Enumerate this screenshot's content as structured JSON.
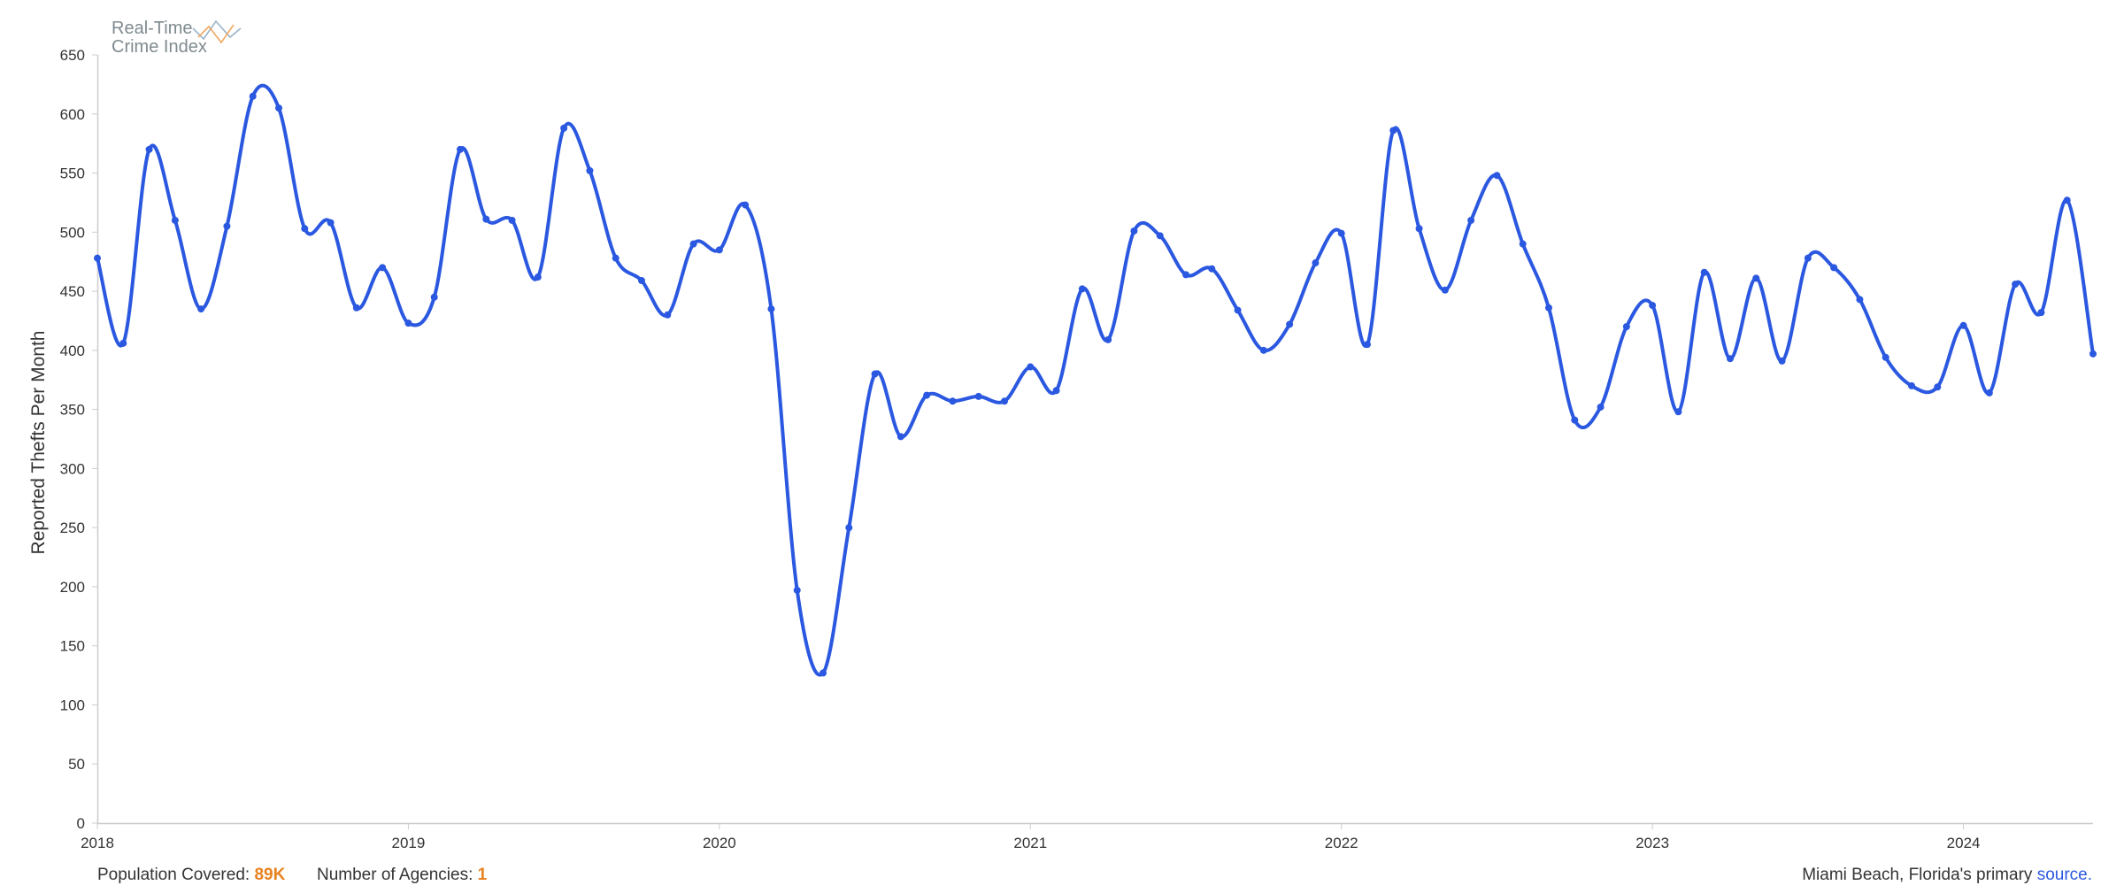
{
  "logo": {
    "line1": "Real-Time",
    "line2": "Crime Index"
  },
  "footer": {
    "population_label": "Population Covered:",
    "population_value": "89K",
    "agencies_label": "Number of Agencies:",
    "agencies_value": "1",
    "source_prefix": "Miami Beach, Florida's primary",
    "source_link": "source",
    "source_suffix": "."
  },
  "colors": {
    "line": "#2b58e0",
    "accent": "#e8821e",
    "axis": "#cccccc"
  },
  "chart_data": {
    "type": "line",
    "title": "",
    "xlabel": "",
    "ylabel": "Reported Thefts Per Month",
    "x_start": "2018-01",
    "x_frequency": "monthly",
    "xlim": [
      "2018-01",
      "2024-06"
    ],
    "ylim": [
      0,
      650
    ],
    "yticks": [
      0,
      50,
      100,
      150,
      200,
      250,
      300,
      350,
      400,
      450,
      500,
      550,
      600,
      650
    ],
    "xticks": [
      "2018",
      "2019",
      "2020",
      "2021",
      "2022",
      "2023",
      "2024"
    ],
    "curve": "smooth",
    "markers": true,
    "grid": false,
    "series": [
      {
        "values": [
          478,
          406,
          570,
          510,
          435,
          505,
          615,
          605,
          503,
          508,
          436,
          470,
          423,
          445,
          570,
          511,
          510,
          462,
          588,
          552,
          478,
          459,
          430,
          490,
          485,
          523,
          435,
          197,
          127,
          250,
          380,
          327,
          362,
          357,
          361,
          357,
          386,
          366,
          452,
          409,
          501,
          497,
          464,
          469,
          434,
          400,
          422,
          474,
          499,
          405,
          586,
          503,
          451,
          510,
          548,
          490,
          436,
          341,
          352,
          420,
          438,
          348,
          466,
          393,
          461,
          391,
          478,
          470,
          443,
          394,
          370,
          369,
          421,
          364,
          456,
          432,
          527,
          397
        ]
      }
    ]
  }
}
